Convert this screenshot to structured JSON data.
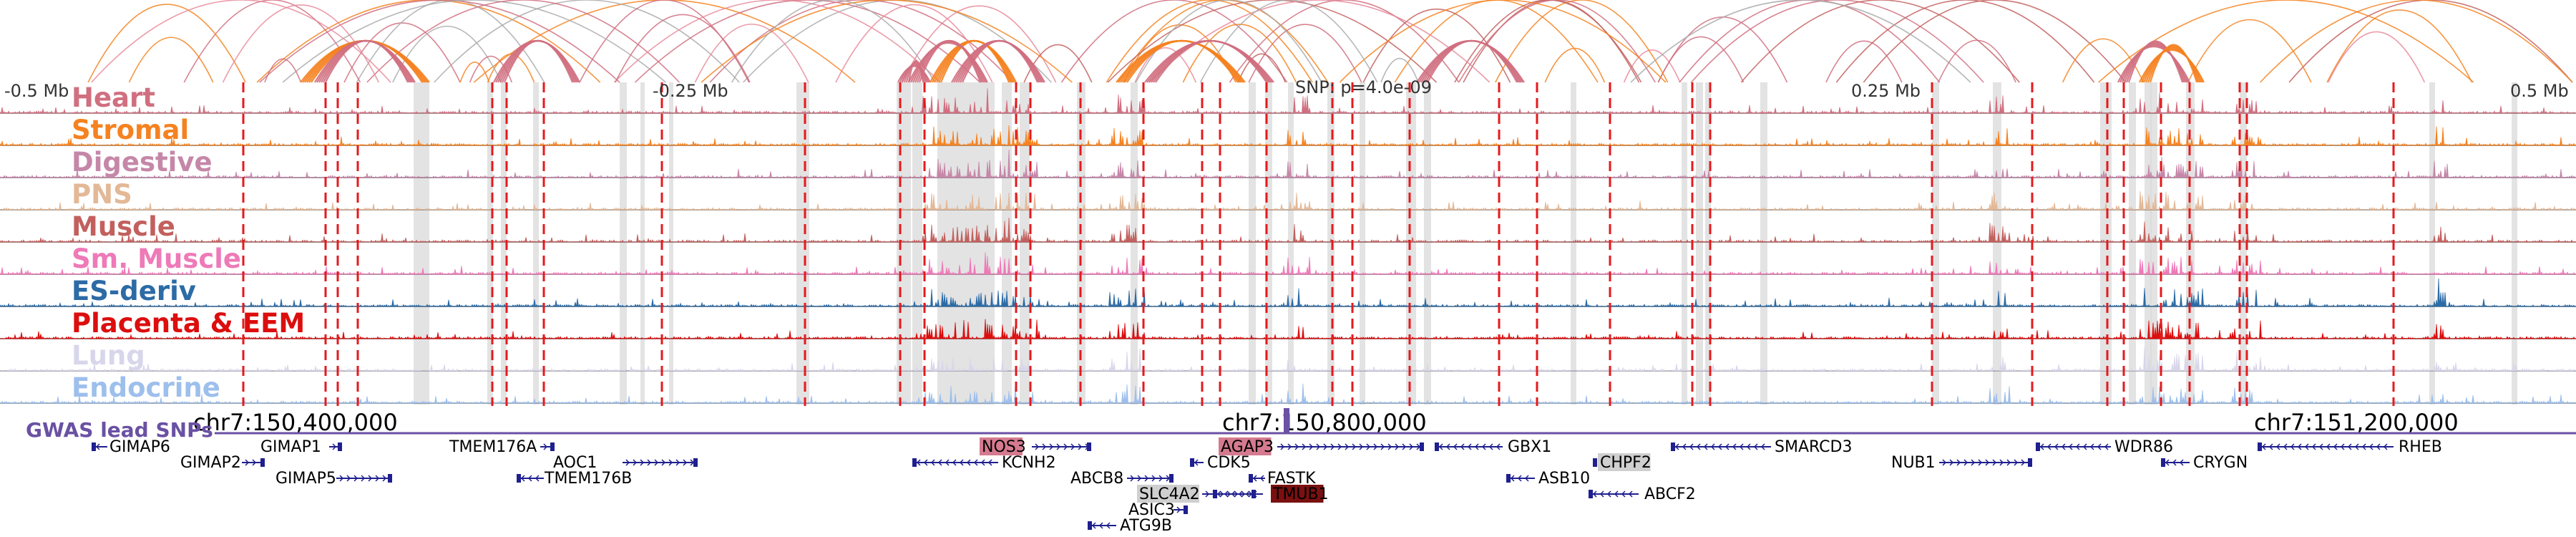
{
  "scale": {
    "left": "-0.5 Mb",
    "mid_left": "-0.25 Mb",
    "snp": "SNP: p=4.0e-09",
    "mid_right": "0.25 Mb",
    "right": "0.5 Mb"
  },
  "coordinates": [
    "chr7:150,400,000",
    "chr7:150,800,000",
    "chr7:151,200,000"
  ],
  "gwas_label": "GWAS lead SNPs",
  "colors": {
    "highlight_line": "#e41a1c",
    "gray_region": "#d9d9d9",
    "gwas_bar": "#6a51a3",
    "gene_strand": "#1f1f8f"
  },
  "tracks": [
    {
      "label": "Heart",
      "color": "#d06f80"
    },
    {
      "label": "Stromal",
      "color": "#f58220"
    },
    {
      "label": "Digestive",
      "color": "#c587a8"
    },
    {
      "label": "PNS",
      "color": "#e3b897"
    },
    {
      "label": "Muscle",
      "color": "#c2605e"
    },
    {
      "label": "Sm. Muscle",
      "color": "#ee7ab8"
    },
    {
      "label": "ES-deriv",
      "color": "#2c6ba5"
    },
    {
      "label": "Placenta & EEM",
      "color": "#dc0e0e"
    },
    {
      "label": "Lung",
      "color": "#d8d6ea"
    },
    {
      "label": "Endocrine",
      "color": "#9dbfec"
    }
  ],
  "genes": [
    {
      "name": "GIMAP6",
      "highlight": "none"
    },
    {
      "name": "GIMAP2",
      "highlight": "none"
    },
    {
      "name": "GIMAP1",
      "highlight": "none"
    },
    {
      "name": "GIMAP5",
      "highlight": "none"
    },
    {
      "name": "TMEM176A",
      "highlight": "none"
    },
    {
      "name": "AOC1",
      "highlight": "none"
    },
    {
      "name": "TMEM176B",
      "highlight": "none"
    },
    {
      "name": "NOS3",
      "highlight": "pink"
    },
    {
      "name": "KCNH2",
      "highlight": "none"
    },
    {
      "name": "ABCB8",
      "highlight": "none"
    },
    {
      "name": "SLC4A2",
      "highlight": "gray"
    },
    {
      "name": "ASIC3",
      "highlight": "none"
    },
    {
      "name": "ATG9B",
      "highlight": "none"
    },
    {
      "name": "AGAP3",
      "highlight": "pink"
    },
    {
      "name": "CDK5",
      "highlight": "none"
    },
    {
      "name": "FASTK",
      "highlight": "none"
    },
    {
      "name": "TMUB1",
      "highlight": "dark"
    },
    {
      "name": "GBX1",
      "highlight": "none"
    },
    {
      "name": "ASB10",
      "highlight": "none"
    },
    {
      "name": "CHPF2",
      "highlight": "gray"
    },
    {
      "name": "ABCF2",
      "highlight": "none"
    },
    {
      "name": "SMARCD3",
      "highlight": "none"
    },
    {
      "name": "NUB1",
      "highlight": "none"
    },
    {
      "name": "WDR86",
      "highlight": "none"
    },
    {
      "name": "CRYGN",
      "highlight": "none"
    },
    {
      "name": "RHEB",
      "highlight": "none"
    }
  ]
}
